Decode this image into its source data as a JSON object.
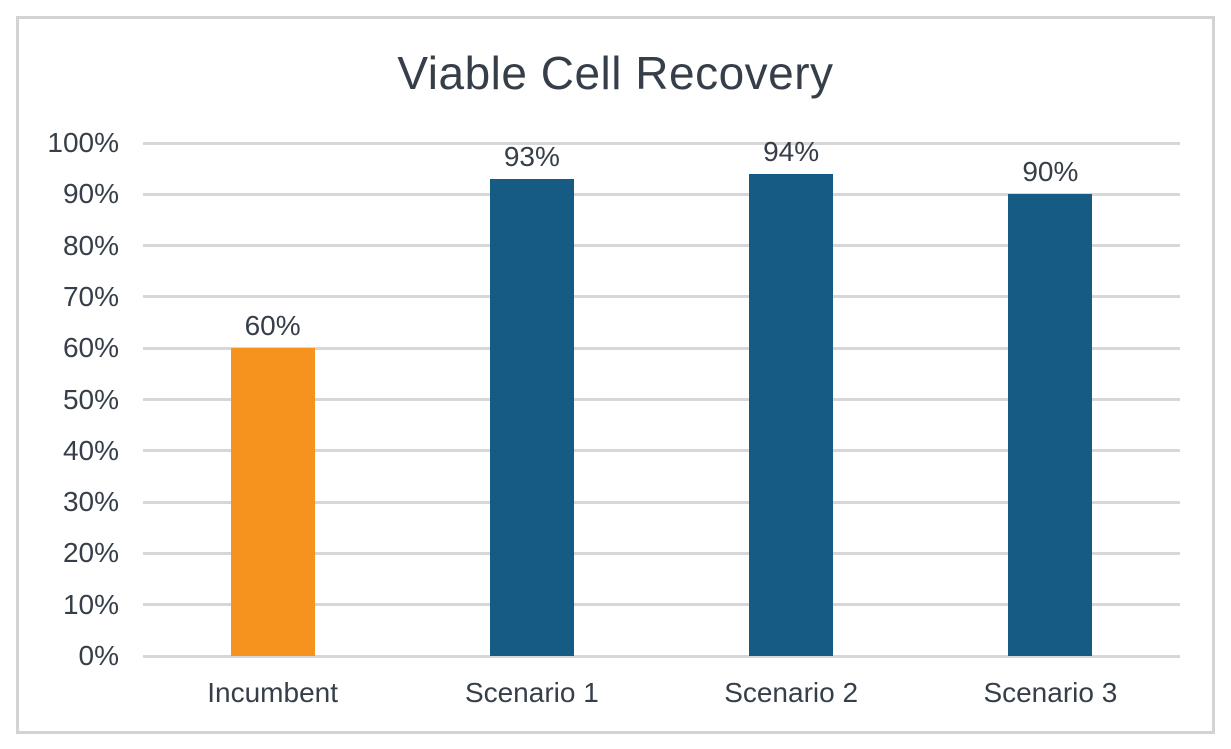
{
  "window": {
    "background": "#FFFFFF"
  },
  "panel": {
    "border_color": "#D1D3D4",
    "background": "#FFFFFF"
  },
  "chart_data": {
    "type": "bar",
    "title": "Viable Cell Recovery",
    "categories": [
      "Incumbent",
      "Scenario 1",
      "Scenario 2",
      "Scenario 3"
    ],
    "values": [
      60,
      93,
      94,
      90
    ],
    "data_labels": [
      "60%",
      "93%",
      "94%",
      "90%"
    ],
    "bar_colors": [
      "#F6921E",
      "#165B83",
      "#165B83",
      "#165B83"
    ],
    "xlabel": "",
    "ylabel": "",
    "ylim": [
      0,
      100
    ],
    "ytick_values": [
      0,
      10,
      20,
      30,
      40,
      50,
      60,
      70,
      80,
      90,
      100
    ],
    "ytick_labels": [
      "0%",
      "10%",
      "20%",
      "30%",
      "40%",
      "50%",
      "60%",
      "70%",
      "80%",
      "90%",
      "100%"
    ],
    "grid": true,
    "legend": false,
    "colors": {
      "text": "#363F49",
      "gridline": "#D7D7D7",
      "highlight_orange": "#F6921E",
      "series_blue": "#165B83"
    }
  }
}
